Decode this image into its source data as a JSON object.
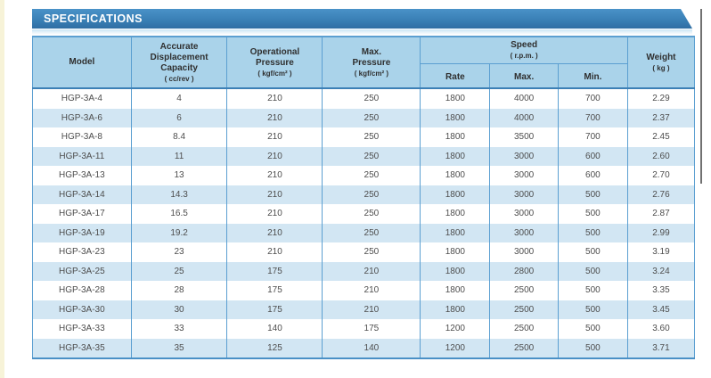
{
  "banner": {
    "title": "SPECIFICATIONS"
  },
  "colors": {
    "banner_blue": "#3a80b6",
    "header_bg": "#aad3ea",
    "stripe_bg": "#d2e6f3",
    "border_blue": "#5b9fd1",
    "header_rule_blue": "#3c80b6",
    "page_edge_strip": "#f7f3d8",
    "text": "#4d4d4d"
  },
  "table": {
    "headers": {
      "model": "Model",
      "capacity_label": "Accurate\nDisplacement\nCapacity",
      "capacity_unit": "( cc/rev )",
      "operational_label": "Operational\nPressure",
      "operational_unit": "( kgf/cm² )",
      "max_pressure_label": "Max.\nPressure",
      "max_pressure_unit": "( kgf/cm² )",
      "speed_label": "Speed",
      "speed_unit": "( r.p.m. )",
      "speed_sub": [
        "Rate",
        "Max.",
        "Min."
      ],
      "weight_label": "Weight",
      "weight_unit": "( kg )"
    },
    "rows": [
      {
        "model": "HGP-3A-4",
        "capacity": "4",
        "operational_pressure": "210",
        "max_pressure": "250",
        "speed_rate": "1800",
        "speed_max": "4000",
        "speed_min": "700",
        "weight": "2.29"
      },
      {
        "model": "HGP-3A-6",
        "capacity": "6",
        "operational_pressure": "210",
        "max_pressure": "250",
        "speed_rate": "1800",
        "speed_max": "4000",
        "speed_min": "700",
        "weight": "2.37"
      },
      {
        "model": "HGP-3A-8",
        "capacity": "8.4",
        "operational_pressure": "210",
        "max_pressure": "250",
        "speed_rate": "1800",
        "speed_max": "3500",
        "speed_min": "700",
        "weight": "2.45"
      },
      {
        "model": "HGP-3A-11",
        "capacity": "11",
        "operational_pressure": "210",
        "max_pressure": "250",
        "speed_rate": "1800",
        "speed_max": "3000",
        "speed_min": "600",
        "weight": "2.60"
      },
      {
        "model": "HGP-3A-13",
        "capacity": "13",
        "operational_pressure": "210",
        "max_pressure": "250",
        "speed_rate": "1800",
        "speed_max": "3000",
        "speed_min": "600",
        "weight": "2.70"
      },
      {
        "model": "HGP-3A-14",
        "capacity": "14.3",
        "operational_pressure": "210",
        "max_pressure": "250",
        "speed_rate": "1800",
        "speed_max": "3000",
        "speed_min": "500",
        "weight": "2.76"
      },
      {
        "model": "HGP-3A-17",
        "capacity": "16.5",
        "operational_pressure": "210",
        "max_pressure": "250",
        "speed_rate": "1800",
        "speed_max": "3000",
        "speed_min": "500",
        "weight": "2.87"
      },
      {
        "model": "HGP-3A-19",
        "capacity": "19.2",
        "operational_pressure": "210",
        "max_pressure": "250",
        "speed_rate": "1800",
        "speed_max": "3000",
        "speed_min": "500",
        "weight": "2.99"
      },
      {
        "model": "HGP-3A-23",
        "capacity": "23",
        "operational_pressure": "210",
        "max_pressure": "250",
        "speed_rate": "1800",
        "speed_max": "3000",
        "speed_min": "500",
        "weight": "3.19"
      },
      {
        "model": "HGP-3A-25",
        "capacity": "25",
        "operational_pressure": "175",
        "max_pressure": "210",
        "speed_rate": "1800",
        "speed_max": "2800",
        "speed_min": "500",
        "weight": "3.24"
      },
      {
        "model": "HGP-3A-28",
        "capacity": "28",
        "operational_pressure": "175",
        "max_pressure": "210",
        "speed_rate": "1800",
        "speed_max": "2500",
        "speed_min": "500",
        "weight": "3.35"
      },
      {
        "model": "HGP-3A-30",
        "capacity": "30",
        "operational_pressure": "175",
        "max_pressure": "210",
        "speed_rate": "1800",
        "speed_max": "2500",
        "speed_min": "500",
        "weight": "3.45"
      },
      {
        "model": "HGP-3A-33",
        "capacity": "33",
        "operational_pressure": "140",
        "max_pressure": "175",
        "speed_rate": "1200",
        "speed_max": "2500",
        "speed_min": "500",
        "weight": "3.60"
      },
      {
        "model": "HGP-3A-35",
        "capacity": "35",
        "operational_pressure": "125",
        "max_pressure": "140",
        "speed_rate": "1200",
        "speed_max": "2500",
        "speed_min": "500",
        "weight": "3.71"
      }
    ],
    "row_keys": [
      "model",
      "capacity",
      "operational_pressure",
      "max_pressure",
      "speed_rate",
      "speed_max",
      "speed_min",
      "weight"
    ]
  }
}
